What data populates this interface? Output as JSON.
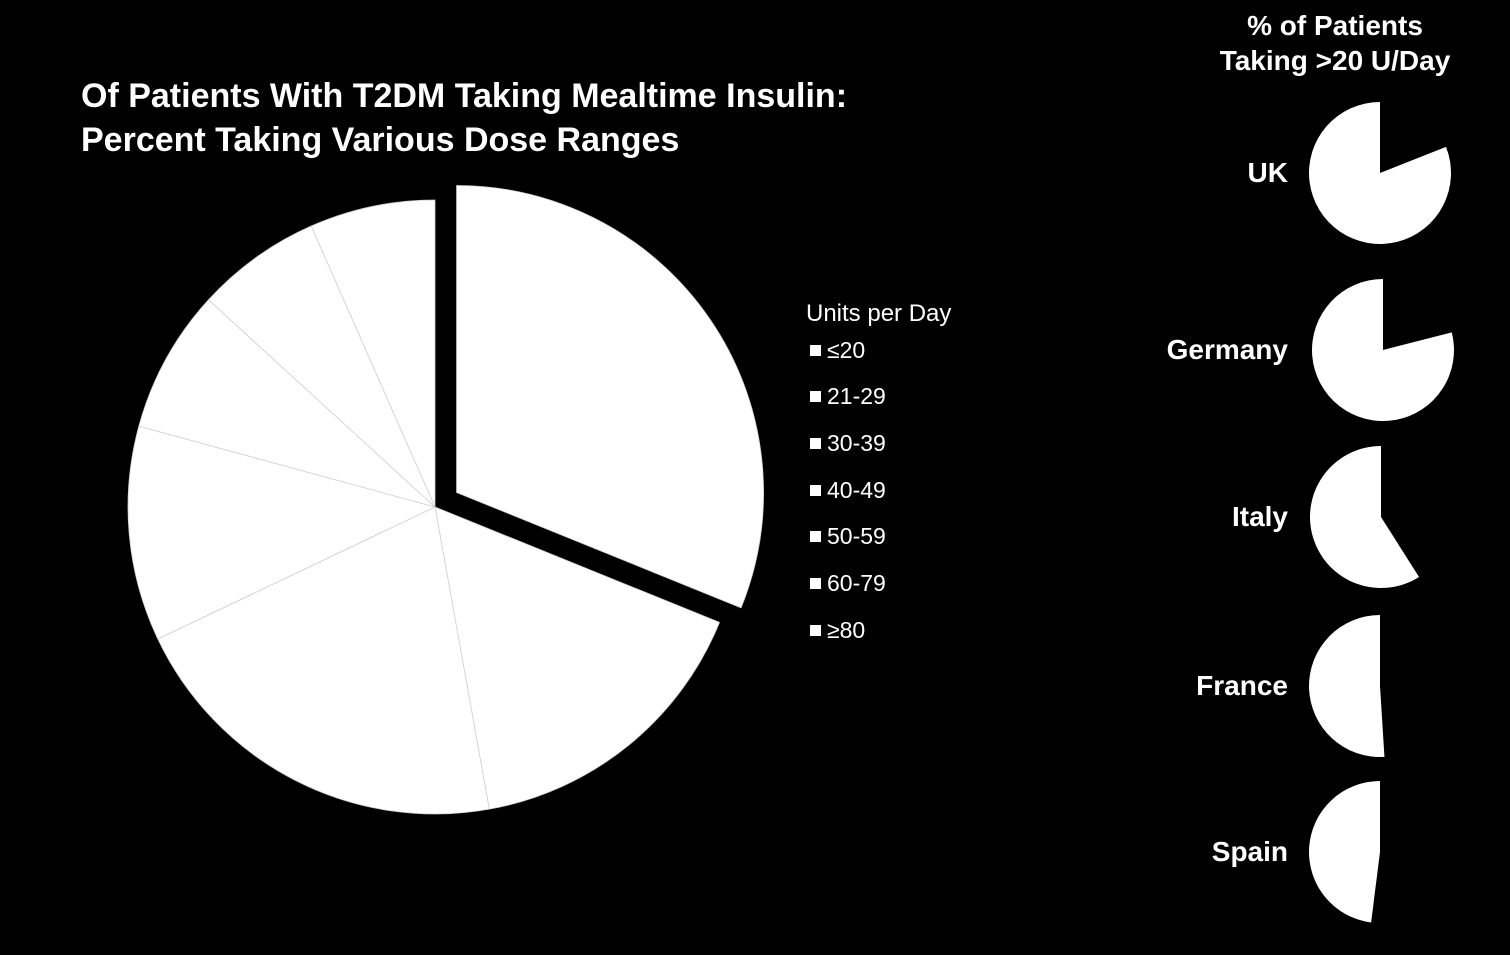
{
  "chart_data": [
    {
      "type": "pie",
      "title_lines": [
        "Of Patients With T2DM Taking Mealtime Insulin:",
        "Percent Taking Various Dose Ranges"
      ],
      "legend_title": "Units per Day",
      "legend_placement": "right",
      "categories": [
        "≤20",
        "21-29",
        "30-39",
        "40-49",
        "50-59",
        "60-79",
        "≥80"
      ],
      "values": [
        33,
        17,
        22,
        12,
        8,
        7,
        7
      ],
      "exploded": [
        "≤20"
      ],
      "colors": [
        "#ffffff",
        "#ffffff",
        "#ffffff",
        "#ffffff",
        "#ffffff",
        "#ffffff",
        "#ffffff"
      ]
    },
    {
      "type": "pie",
      "title_lines": [
        "% of Patients",
        "Taking >20 U/Day"
      ],
      "categories": [
        "UK",
        "Germany",
        "Italy",
        "France",
        "Spain"
      ],
      "values": [
        81,
        79,
        59,
        51,
        48
      ],
      "unit": "%",
      "colors": {
        "slice": "#ffffff",
        "background": "#000000"
      }
    }
  ]
}
